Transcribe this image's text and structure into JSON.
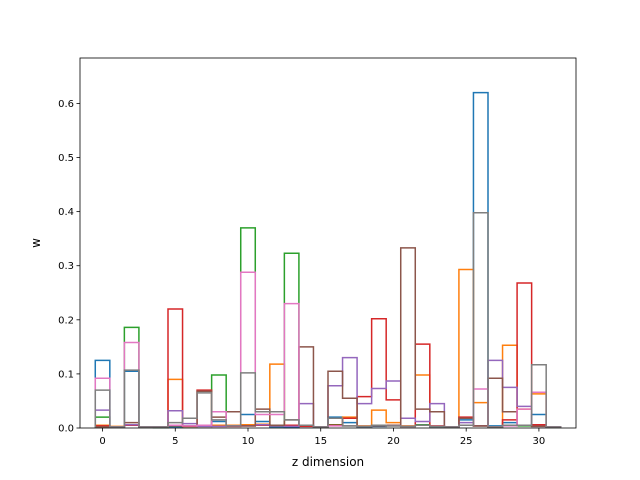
{
  "chart_data": {
    "type": "histogram-step",
    "xlabel": "z dimension",
    "ylabel": "w",
    "xlim": [
      -1.55,
      32.55
    ],
    "ylim": [
      0,
      0.684
    ],
    "xticks": [
      0,
      5,
      10,
      15,
      20,
      25,
      30
    ],
    "yticks": [
      0.0,
      0.1,
      0.2,
      0.3,
      0.4,
      0.5,
      0.6
    ],
    "grid": false,
    "bin_edges": [
      -0.5,
      0.5,
      1.5,
      2.5,
      3.5,
      4.5,
      5.5,
      6.5,
      7.5,
      8.5,
      9.5,
      10.5,
      11.5,
      12.5,
      13.5,
      14.5,
      15.5,
      16.5,
      17.5,
      18.5,
      19.5,
      20.5,
      21.5,
      22.5,
      23.5,
      24.5,
      25.5,
      26.5,
      27.5,
      28.5,
      29.5,
      30.5,
      31.5
    ],
    "series": [
      {
        "color": "#1f77b4",
        "values": [
          0.125,
          0.002,
          0.105,
          0.002,
          0.001,
          0.002,
          0.003,
          0.003,
          0.012,
          0.004,
          0.025,
          0.012,
          0.002,
          0.001,
          0.003,
          0.002,
          0.02,
          0.01,
          0.002,
          0.003,
          0.005,
          0.003,
          0.005,
          0.002,
          0.002,
          0.015,
          0.62,
          0.004,
          0.01,
          0.005,
          0.025,
          0.002
        ]
      },
      {
        "color": "#ff7f0e",
        "values": [
          0.005,
          0.003,
          0.005,
          0.002,
          0.002,
          0.09,
          0.003,
          0.003,
          0.005,
          0.005,
          0.006,
          0.007,
          0.118,
          0.005,
          0.004,
          0.002,
          0.006,
          0.02,
          0.004,
          0.033,
          0.01,
          0.004,
          0.098,
          0.003,
          0.002,
          0.293,
          0.047,
          0.002,
          0.153,
          0.035,
          0.063,
          0.002
        ]
      },
      {
        "color": "#2ca02c",
        "values": [
          0.02,
          0.002,
          0.186,
          0.002,
          0.001,
          0.004,
          0.003,
          0.005,
          0.098,
          0.004,
          0.37,
          0.006,
          0.004,
          0.323,
          0.004,
          0.002,
          0.006,
          0.004,
          0.003,
          0.005,
          0.004,
          0.003,
          0.006,
          0.003,
          0.002,
          0.005,
          0.004,
          0.002,
          0.005,
          0.004,
          0.005,
          0.002
        ]
      },
      {
        "color": "#d62728",
        "values": [
          0.004,
          0.002,
          0.005,
          0.002,
          0.002,
          0.22,
          0.003,
          0.07,
          0.003,
          0.003,
          0.004,
          0.005,
          0.004,
          0.005,
          0.003,
          0.002,
          0.005,
          0.018,
          0.058,
          0.202,
          0.052,
          0.003,
          0.155,
          0.004,
          0.002,
          0.02,
          0.004,
          0.002,
          0.015,
          0.268,
          0.006,
          0.002
        ]
      },
      {
        "color": "#9467bd",
        "values": [
          0.033,
          0.002,
          0.006,
          0.002,
          0.002,
          0.032,
          0.008,
          0.003,
          0.003,
          0.004,
          0.004,
          0.006,
          0.004,
          0.003,
          0.045,
          0.002,
          0.078,
          0.13,
          0.045,
          0.073,
          0.087,
          0.018,
          0.012,
          0.045,
          0.002,
          0.01,
          0.004,
          0.125,
          0.075,
          0.04,
          0.003,
          0.002
        ]
      },
      {
        "color": "#8c564b",
        "values": [
          0.002,
          0.002,
          0.01,
          0.002,
          0.002,
          0.004,
          0.004,
          0.068,
          0.02,
          0.03,
          0.004,
          0.035,
          0.005,
          0.015,
          0.15,
          0.002,
          0.105,
          0.055,
          0.003,
          0.004,
          0.005,
          0.333,
          0.035,
          0.03,
          0.002,
          0.018,
          0.004,
          0.092,
          0.03,
          0.005,
          0.003,
          0.002
        ]
      },
      {
        "color": "#e377c2",
        "values": [
          0.092,
          0.002,
          0.158,
          0.002,
          0.002,
          0.005,
          0.004,
          0.005,
          0.03,
          0.004,
          0.288,
          0.025,
          0.025,
          0.23,
          0.005,
          0.002,
          0.004,
          0.004,
          0.003,
          0.005,
          0.004,
          0.003,
          0.005,
          0.003,
          0.002,
          0.005,
          0.072,
          0.002,
          0.004,
          0.035,
          0.066,
          0.002
        ]
      },
      {
        "color": "#7f7f7f",
        "values": [
          0.07,
          0.002,
          0.107,
          0.002,
          0.002,
          0.01,
          0.018,
          0.065,
          0.015,
          0.004,
          0.102,
          0.03,
          0.03,
          0.015,
          0.005,
          0.002,
          0.018,
          0.004,
          0.003,
          0.005,
          0.004,
          0.003,
          0.005,
          0.003,
          0.002,
          0.005,
          0.398,
          0.002,
          0.005,
          0.005,
          0.117,
          0.002
        ]
      }
    ]
  }
}
